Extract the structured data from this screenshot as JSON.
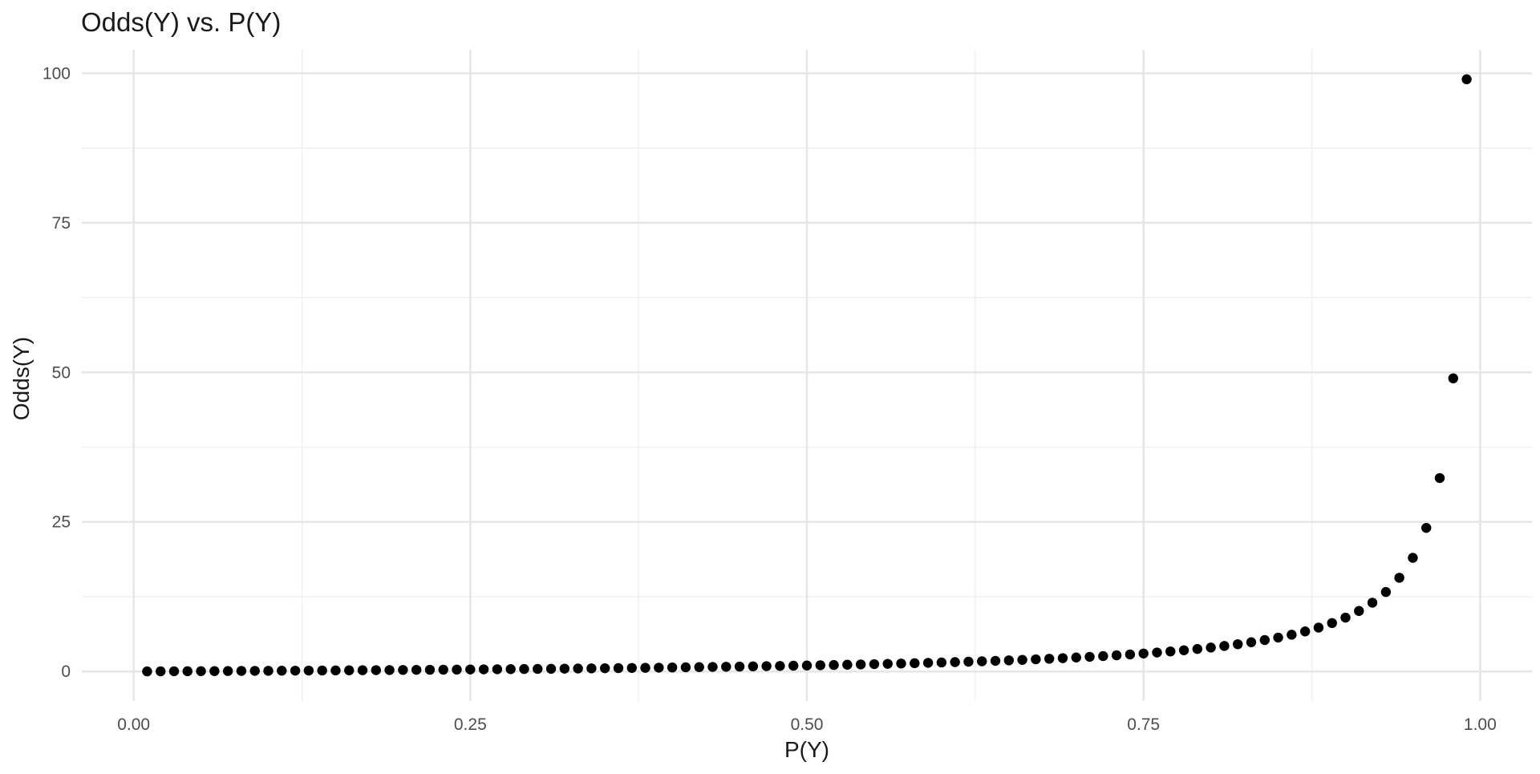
{
  "chart_data": {
    "type": "scatter",
    "title": "Odds(Y) vs. P(Y)",
    "xlabel": "P(Y)",
    "ylabel": "Odds(Y)",
    "x_ticks": [
      "0.00",
      "0.25",
      "0.50",
      "0.75",
      "1.00"
    ],
    "y_ticks": [
      "0",
      "25",
      "50",
      "75",
      "100"
    ],
    "xlim": [
      -0.0385,
      1.0385
    ],
    "ylim": [
      -4.94,
      103.94
    ],
    "grid": true,
    "legend": "none",
    "point_color": "#000000",
    "series": [
      {
        "x": [
          0.01,
          0.02,
          0.03,
          0.04,
          0.05,
          0.06,
          0.07,
          0.08,
          0.09,
          0.1,
          0.11,
          0.12,
          0.13,
          0.14,
          0.15,
          0.16,
          0.17,
          0.18,
          0.19,
          0.2,
          0.21,
          0.22,
          0.23,
          0.24,
          0.25,
          0.26,
          0.27,
          0.28,
          0.29,
          0.3,
          0.31,
          0.32,
          0.33,
          0.34,
          0.35,
          0.36,
          0.37,
          0.38,
          0.39,
          0.4,
          0.41,
          0.42,
          0.43,
          0.44,
          0.45,
          0.46,
          0.47,
          0.48,
          0.49,
          0.5,
          0.51,
          0.52,
          0.53,
          0.54,
          0.55,
          0.56,
          0.57,
          0.58,
          0.59,
          0.6,
          0.61,
          0.62,
          0.63,
          0.64,
          0.65,
          0.66,
          0.67,
          0.68,
          0.69,
          0.7,
          0.71,
          0.72,
          0.73,
          0.74,
          0.75,
          0.76,
          0.77,
          0.78,
          0.79,
          0.8,
          0.81,
          0.82,
          0.83,
          0.84,
          0.85,
          0.86,
          0.87,
          0.88,
          0.89,
          0.9,
          0.91,
          0.92,
          0.93,
          0.94,
          0.95,
          0.96,
          0.97,
          0.98,
          0.99
        ],
        "y": [
          0.0101,
          0.0204,
          0.0309,
          0.0417,
          0.0526,
          0.0638,
          0.0753,
          0.087,
          0.0989,
          0.1111,
          0.1236,
          0.1364,
          0.1494,
          0.1628,
          0.1765,
          0.1905,
          0.2048,
          0.2195,
          0.2346,
          0.25,
          0.2658,
          0.2821,
          0.2987,
          0.3158,
          0.3333,
          0.3514,
          0.3699,
          0.3889,
          0.4085,
          0.4286,
          0.4493,
          0.4706,
          0.4925,
          0.5152,
          0.5385,
          0.5625,
          0.5873,
          0.6129,
          0.6393,
          0.6667,
          0.6949,
          0.7241,
          0.7544,
          0.7857,
          0.8182,
          0.8519,
          0.8868,
          0.9231,
          0.9608,
          1.0,
          1.0408,
          1.0833,
          1.1277,
          1.1739,
          1.2222,
          1.2727,
          1.3256,
          1.381,
          1.439,
          1.5,
          1.5641,
          1.6316,
          1.7027,
          1.7778,
          1.8571,
          1.9412,
          2.0303,
          2.125,
          2.2258,
          2.3333,
          2.4483,
          2.5714,
          2.7037,
          2.8462,
          3.0,
          3.1667,
          3.3478,
          3.5455,
          3.7619,
          4.0,
          4.2632,
          4.5556,
          4.8824,
          5.25,
          5.6667,
          6.1429,
          6.6923,
          7.3333,
          8.0909,
          9.0,
          10.1111,
          11.5,
          13.2857,
          15.6667,
          19.0,
          24.0,
          32.3333,
          49.0,
          99.0
        ]
      }
    ]
  }
}
